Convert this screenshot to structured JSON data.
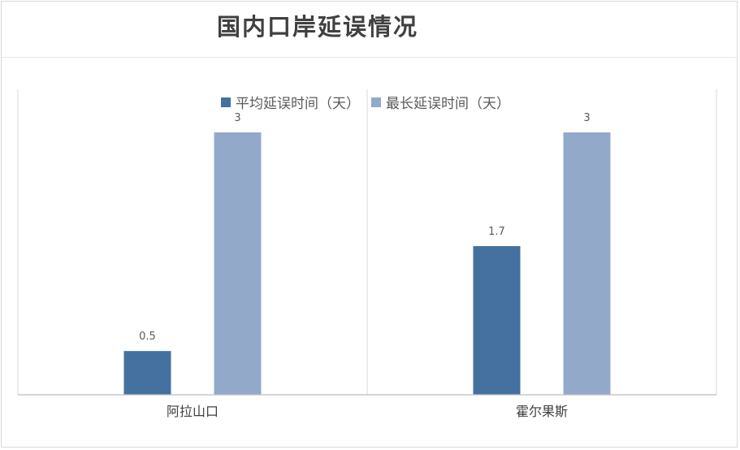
{
  "chart_data": {
    "type": "bar",
    "title": "国内口岸延误情况",
    "categories": [
      "阿拉山口",
      "霍尔果斯"
    ],
    "series": [
      {
        "name": "平均延误时间（天）",
        "values": [
          0.5,
          1.7
        ],
        "color": "#44719f"
      },
      {
        "name": "最长延误时间（天）",
        "values": [
          3,
          3
        ],
        "color": "#92a9ca"
      }
    ],
    "ylim": [
      0,
      3.4
    ],
    "data_labels": true,
    "legend": "top"
  }
}
